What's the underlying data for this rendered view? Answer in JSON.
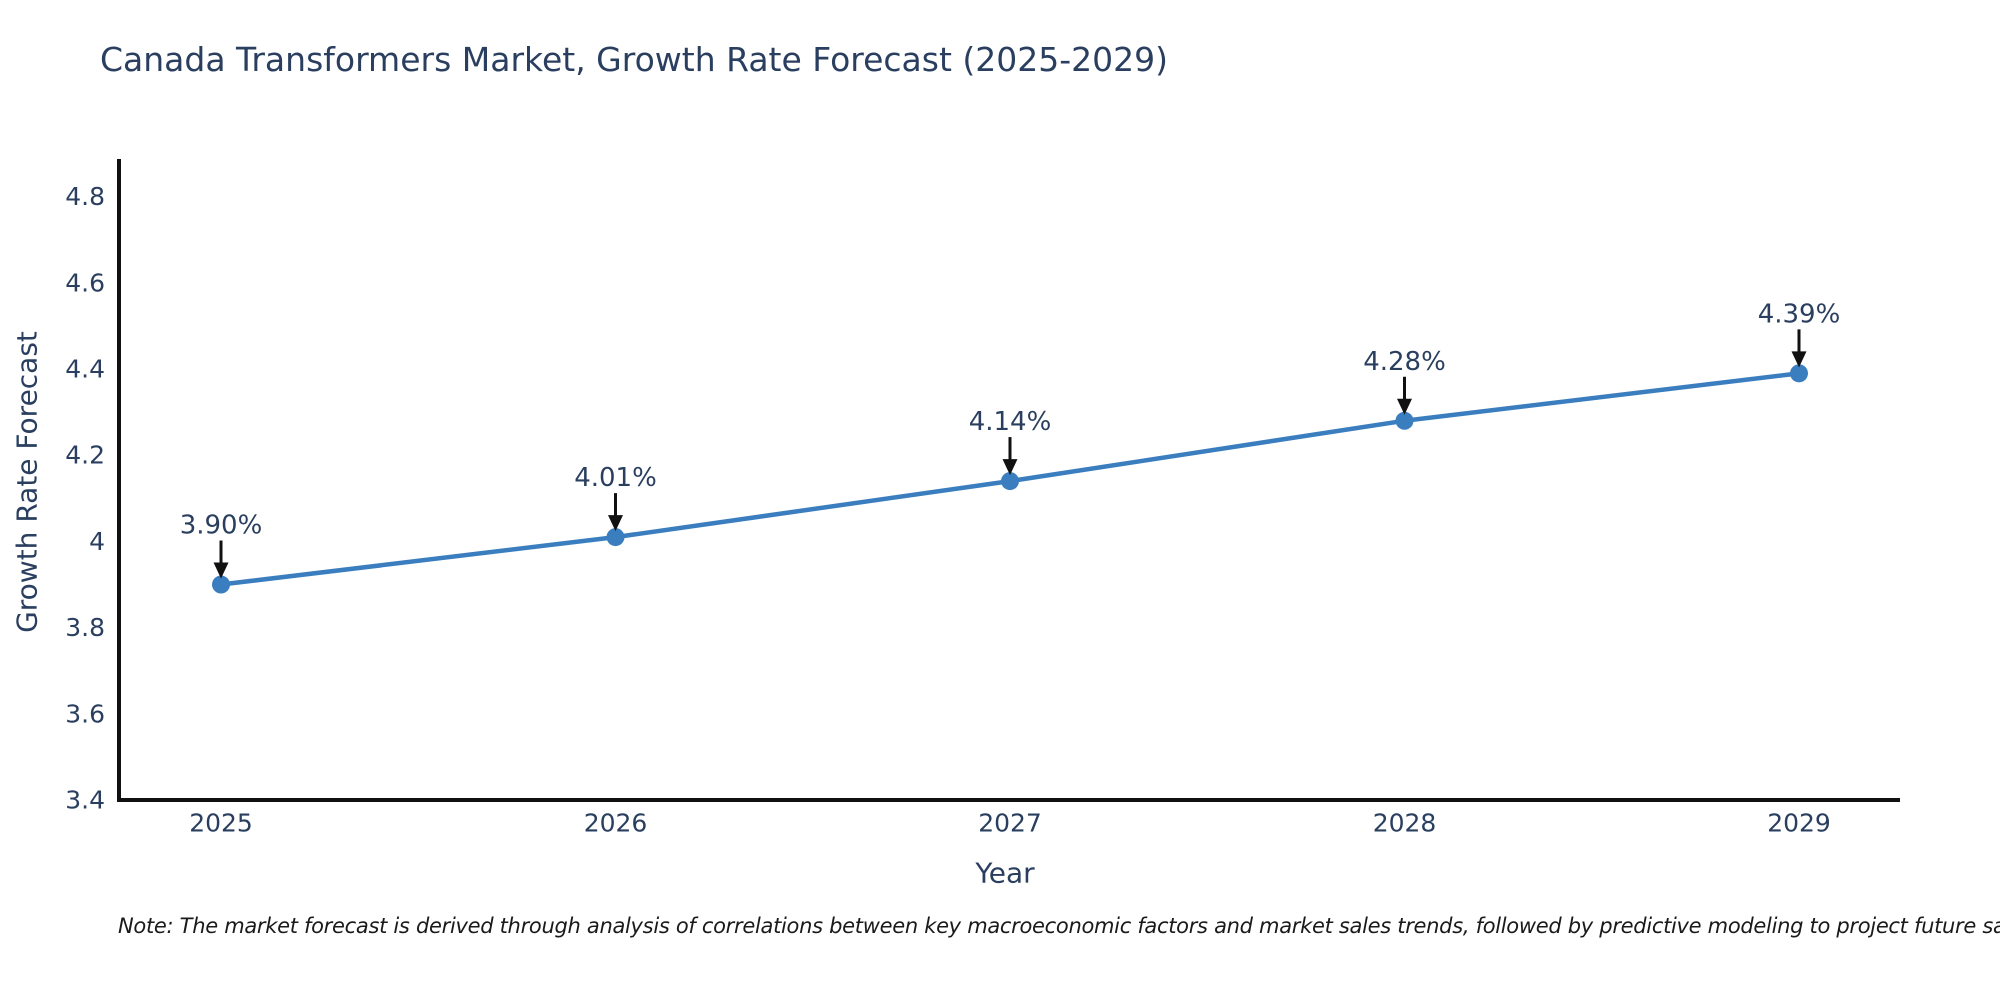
{
  "page": {
    "background": "#ffffff"
  },
  "chart": {
    "note": "Note: The market forecast is derived through analysis of correlations between key macroeconomic factors and market sales trends, followed by predictive modeling to project future sales"
  },
  "chart_data": {
    "type": "line",
    "title": "Canada Transformers Market, Growth Rate Forecast (2025-2029)",
    "xlabel": "Year",
    "ylabel": "Growth Rate Forecast",
    "categories": [
      "2025",
      "2026",
      "2027",
      "2028",
      "2029"
    ],
    "series": [
      {
        "name": "Growth Rate Forecast",
        "values": [
          3.9,
          4.01,
          4.14,
          4.28,
          4.39
        ],
        "labels": [
          "3.90%",
          "4.01%",
          "4.14%",
          "4.28%",
          "4.39%"
        ]
      }
    ],
    "ylim": [
      3.4,
      4.89
    ],
    "yticks": [
      3.4,
      3.6,
      3.8,
      4,
      4.2,
      4.4,
      4.6,
      4.8
    ],
    "ytick_labels": [
      "3.4",
      "3.6",
      "3.8",
      "4",
      "4.2",
      "4.4",
      "4.6",
      "4.8"
    ],
    "grid": false,
    "legend": "none",
    "annotations": "value labels with black down arrows above each point",
    "colors": {
      "line": "#3a7ebf",
      "marker": "#3a7ebf",
      "axis": "#111111",
      "text": "#2a3f5f",
      "arrow": "#111111",
      "note": "#1a1a1a"
    }
  }
}
